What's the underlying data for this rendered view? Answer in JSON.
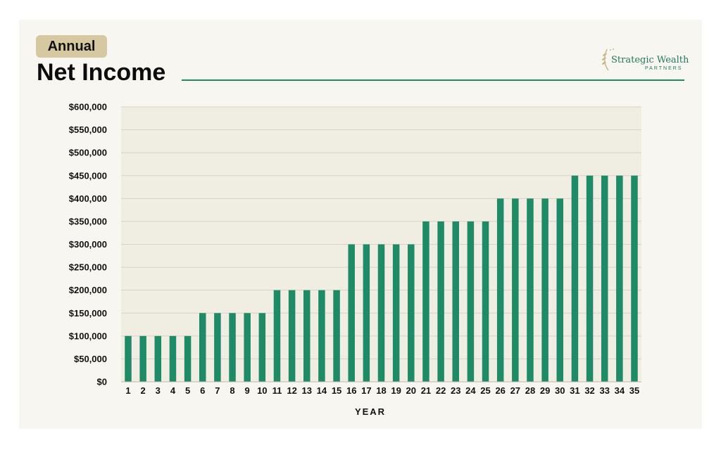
{
  "header": {
    "badge": "Annual",
    "title": "Net Income"
  },
  "logo": {
    "name": "Strategic Wealth",
    "subtitle": "PARTNERS"
  },
  "colors": {
    "bar": "#1f8a66",
    "plot_bg": "#f0ede3",
    "grid": "#d7d3c6",
    "accent": "#1f8a66"
  },
  "chart_data": {
    "type": "bar",
    "title": "Net Income",
    "xlabel": "YEAR",
    "ylabel": "",
    "categories": [
      "1",
      "2",
      "3",
      "4",
      "5",
      "6",
      "7",
      "8",
      "9",
      "10",
      "11",
      "12",
      "13",
      "14",
      "15",
      "16",
      "17",
      "18",
      "19",
      "20",
      "21",
      "22",
      "23",
      "24",
      "25",
      "26",
      "27",
      "28",
      "29",
      "30",
      "31",
      "32",
      "33",
      "34",
      "35"
    ],
    "values": [
      100000,
      100000,
      100000,
      100000,
      100000,
      150000,
      150000,
      150000,
      150000,
      150000,
      200000,
      200000,
      200000,
      200000,
      200000,
      300000,
      300000,
      300000,
      300000,
      300000,
      350000,
      350000,
      350000,
      350000,
      350000,
      400000,
      400000,
      400000,
      400000,
      400000,
      450000,
      450000,
      450000,
      450000,
      450000
    ],
    "ylim": [
      0,
      600000
    ],
    "yticks": [
      0,
      50000,
      100000,
      150000,
      200000,
      250000,
      300000,
      350000,
      400000,
      450000,
      500000,
      550000,
      600000
    ],
    "ytick_labels": [
      "$0",
      "$50,000",
      "$100,000",
      "$150,000",
      "$200,000",
      "$250,000",
      "$300,000",
      "$350,000",
      "$400,000",
      "$450,000",
      "$500,000",
      "$550,000",
      "$600,000"
    ],
    "grid": true,
    "legend": "none"
  }
}
